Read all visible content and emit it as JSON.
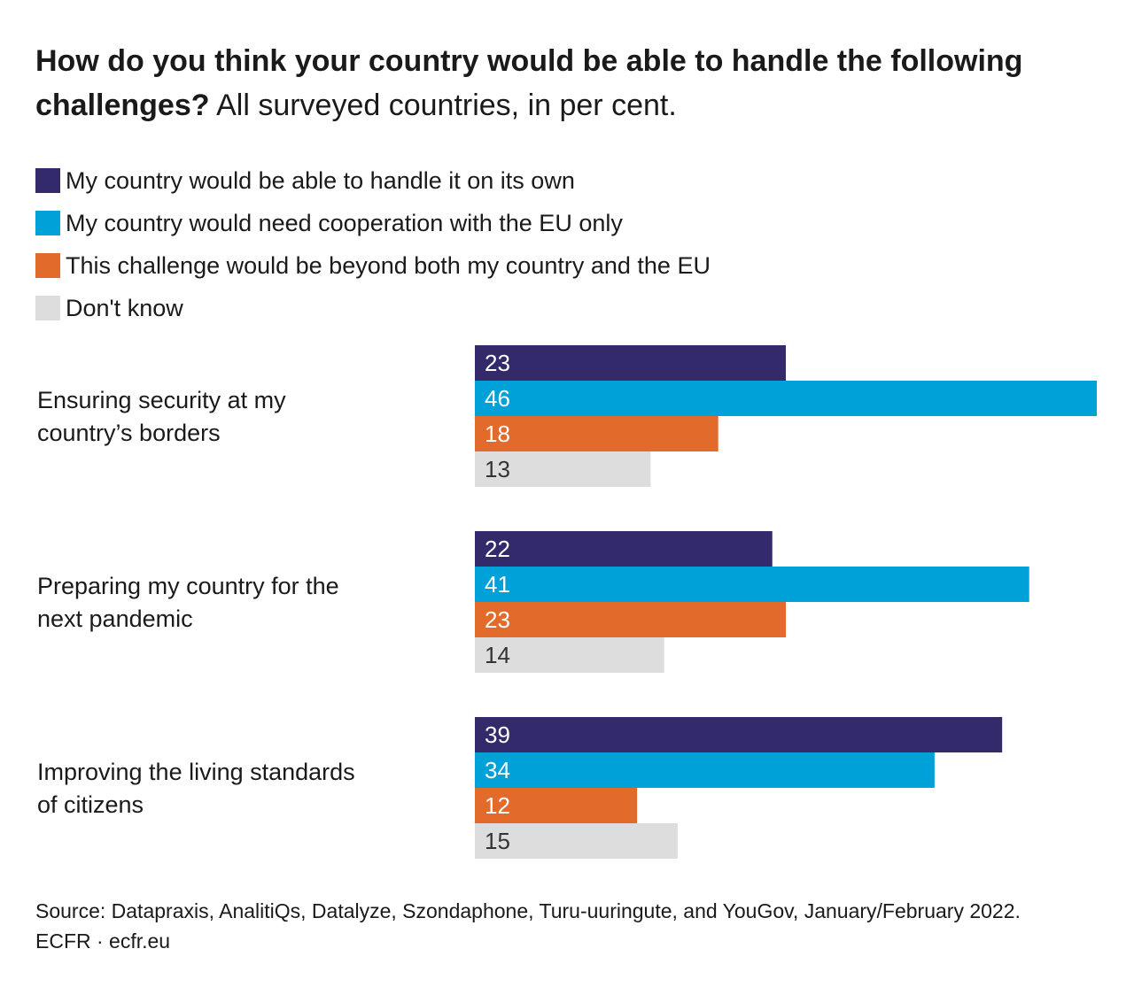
{
  "header": {
    "title_bold": "How do you think your country would be able to handle the following challenges?",
    "title_rest": " All surveyed countries, in per cent."
  },
  "footer": {
    "source": "Source: Datapraxis, AnalitiQs, Datalyze, Szondaphone, Turu-uuringute, and YouGov, January/February 2022.",
    "credit": "ECFR · ecfr.eu"
  },
  "chart_data": {
    "type": "bar",
    "orientation": "horizontal",
    "title": "How do you think your country would be able to handle the following challenges? All surveyed countries, in per cent.",
    "categories": [
      "Ensuring security at my country’s borders",
      "Preparing my country for the next pandemic",
      "Improving the living standards of citizens"
    ],
    "series": [
      {
        "name": "My country would be able to handle it on its own",
        "color": "#332a6b",
        "label_color": "#ffffff",
        "values": [
          23,
          22,
          39
        ]
      },
      {
        "name": "My country would need cooperation with the EU only",
        "color": "#00a0d9",
        "label_color": "#ffffff",
        "values": [
          46,
          41,
          34
        ]
      },
      {
        "name": "This challenge would be beyond both my country and the EU",
        "color": "#e26b2c",
        "label_color": "#ffffff",
        "values": [
          18,
          23,
          12
        ]
      },
      {
        "name": "Don't know",
        "color": "#dddddd",
        "label_color": "#333333",
        "values": [
          13,
          14,
          15
        ]
      }
    ],
    "xlim": [
      0,
      46
    ],
    "legend_position": "top-left",
    "grid": false,
    "data_labels": true
  }
}
